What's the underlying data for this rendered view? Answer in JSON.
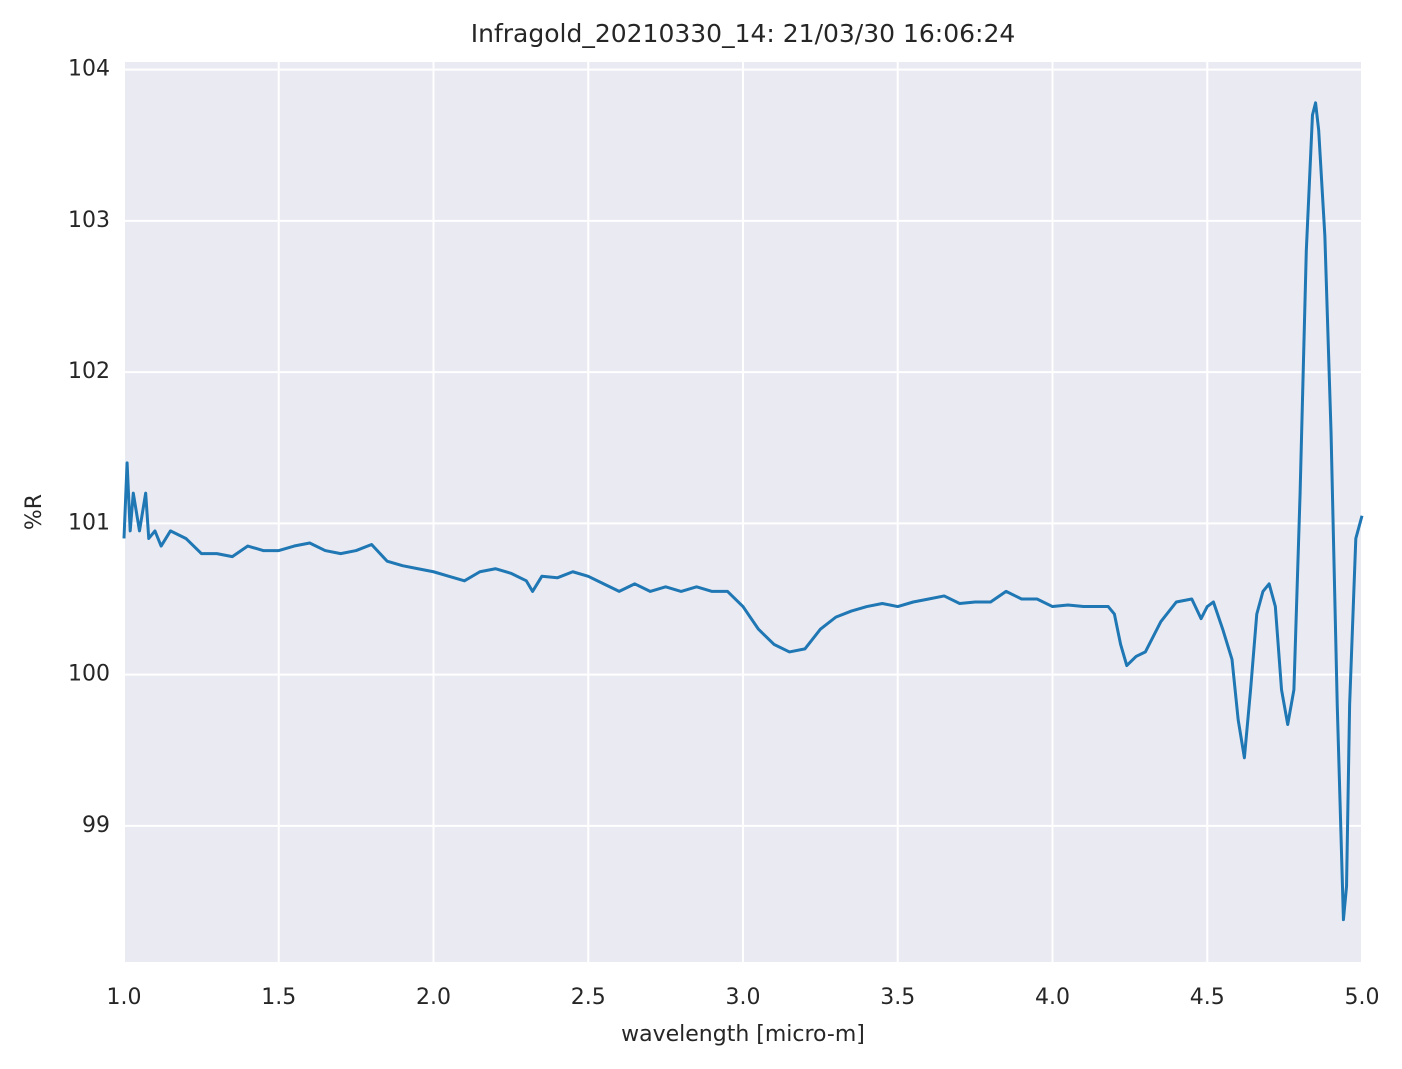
{
  "chart_data": {
    "type": "line",
    "title": "Infragold_20210330_14:  21/03/30 16:06:24",
    "xlabel": "wavelength [micro-m]",
    "ylabel": "%R",
    "xlim": [
      1.0,
      5.0
    ],
    "ylim": [
      98.1,
      104.05
    ],
    "xticks": [
      {
        "value": 1.0,
        "label": "1.0"
      },
      {
        "value": 1.5,
        "label": "1.5"
      },
      {
        "value": 2.0,
        "label": "2.0"
      },
      {
        "value": 2.5,
        "label": "2.5"
      },
      {
        "value": 3.0,
        "label": "3.0"
      },
      {
        "value": 3.5,
        "label": "3.5"
      },
      {
        "value": 4.0,
        "label": "4.0"
      },
      {
        "value": 4.5,
        "label": "4.5"
      },
      {
        "value": 5.0,
        "label": "5.0"
      }
    ],
    "yticks": [
      99,
      100,
      101,
      102,
      103,
      104
    ],
    "grid": true,
    "series": [
      {
        "color": "#1f77b4",
        "x": [
          1.0,
          1.01,
          1.02,
          1.03,
          1.05,
          1.07,
          1.08,
          1.1,
          1.12,
          1.15,
          1.2,
          1.25,
          1.3,
          1.35,
          1.4,
          1.45,
          1.5,
          1.55,
          1.6,
          1.65,
          1.7,
          1.75,
          1.8,
          1.85,
          1.9,
          1.95,
          2.0,
          2.05,
          2.1,
          2.15,
          2.2,
          2.25,
          2.3,
          2.32,
          2.35,
          2.4,
          2.45,
          2.5,
          2.55,
          2.6,
          2.65,
          2.7,
          2.75,
          2.8,
          2.85,
          2.9,
          2.95,
          3.0,
          3.05,
          3.1,
          3.15,
          3.2,
          3.25,
          3.3,
          3.35,
          3.4,
          3.45,
          3.5,
          3.55,
          3.6,
          3.65,
          3.7,
          3.75,
          3.8,
          3.85,
          3.9,
          3.95,
          4.0,
          4.05,
          4.1,
          4.15,
          4.18,
          4.2,
          4.22,
          4.24,
          4.27,
          4.3,
          4.35,
          4.4,
          4.45,
          4.48,
          4.5,
          4.52,
          4.55,
          4.58,
          4.6,
          4.62,
          4.64,
          4.66,
          4.68,
          4.7,
          4.72,
          4.74,
          4.76,
          4.78,
          4.8,
          4.82,
          4.84,
          4.85,
          4.86,
          4.88,
          4.9,
          4.92,
          4.94,
          4.95,
          4.96,
          4.98,
          5.0
        ],
        "values": [
          100.9,
          101.4,
          100.95,
          101.2,
          100.95,
          101.2,
          100.9,
          100.95,
          100.85,
          100.95,
          100.9,
          100.8,
          100.8,
          100.78,
          100.85,
          100.82,
          100.82,
          100.85,
          100.87,
          100.82,
          100.8,
          100.82,
          100.86,
          100.75,
          100.72,
          100.7,
          100.68,
          100.65,
          100.62,
          100.68,
          100.7,
          100.67,
          100.62,
          100.55,
          100.65,
          100.64,
          100.68,
          100.65,
          100.6,
          100.55,
          100.6,
          100.55,
          100.58,
          100.55,
          100.58,
          100.55,
          100.55,
          100.45,
          100.3,
          100.2,
          100.15,
          100.17,
          100.3,
          100.38,
          100.42,
          100.45,
          100.47,
          100.45,
          100.48,
          100.5,
          100.52,
          100.47,
          100.48,
          100.48,
          100.55,
          100.5,
          100.5,
          100.45,
          100.46,
          100.45,
          100.45,
          100.45,
          100.4,
          100.2,
          100.06,
          100.12,
          100.15,
          100.35,
          100.48,
          100.5,
          100.37,
          100.45,
          100.48,
          100.3,
          100.1,
          99.7,
          99.45,
          99.9,
          100.4,
          100.55,
          100.6,
          100.45,
          99.9,
          99.67,
          99.9,
          101.2,
          102.8,
          103.7,
          103.78,
          103.6,
          102.9,
          101.6,
          99.8,
          98.38,
          98.6,
          99.8,
          100.9,
          101.05
        ]
      }
    ]
  }
}
